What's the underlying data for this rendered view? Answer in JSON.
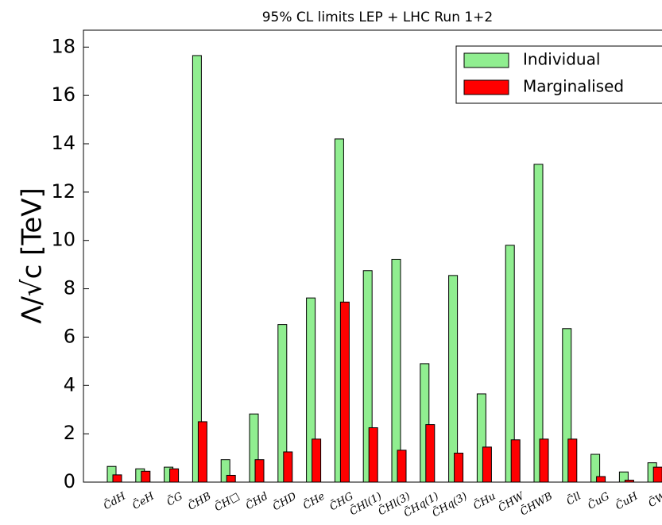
{
  "chart_data": {
    "type": "bar",
    "title": "95% CL limits LEP + LHC Run 1+2",
    "y_label": "Λ/√c [TeV]",
    "categories": [
      "C̄dH",
      "C̄eH",
      "C̄G",
      "C̄HB",
      "C̄H□",
      "C̄Hd",
      "C̄HD",
      "C̄He",
      "C̄HG",
      "C̄Hl(1)",
      "C̄Hl(3)",
      "C̄Hq(1)",
      "C̄Hq(3)",
      "C̄Hu",
      "C̄HW",
      "C̄HWB",
      "C̄ll",
      "C̄uG",
      "C̄uH",
      "C̄W"
    ],
    "series": [
      {
        "name": "Individual",
        "color": "#90ee90",
        "values": [
          0.65,
          0.55,
          0.62,
          17.65,
          0.93,
          2.82,
          6.52,
          7.62,
          14.2,
          8.75,
          9.22,
          4.9,
          8.55,
          3.65,
          9.8,
          13.15,
          6.35,
          1.15,
          0.42,
          0.8
        ]
      },
      {
        "name": "Marginalised",
        "color": "#ff0000",
        "values": [
          0.3,
          0.45,
          0.55,
          2.5,
          0.28,
          0.93,
          1.25,
          1.78,
          7.45,
          2.25,
          1.32,
          2.38,
          1.2,
          1.45,
          1.75,
          1.78,
          1.78,
          0.23,
          0.08,
          0.62
        ]
      }
    ],
    "ylim": [
      0,
      18.7
    ],
    "yticks": [
      0,
      2,
      4,
      6,
      8,
      10,
      12,
      14,
      16,
      18
    ],
    "legend": "upper right"
  }
}
